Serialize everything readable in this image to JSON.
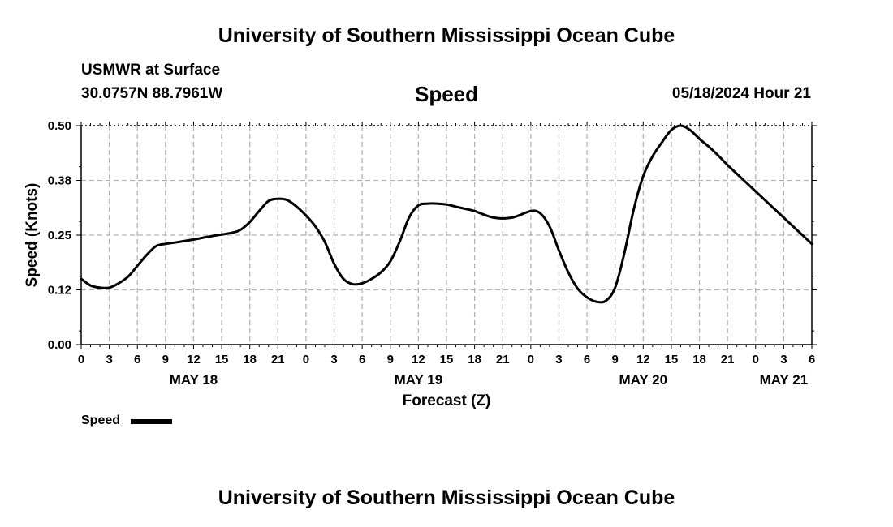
{
  "header": {
    "title": "University of Southern Mississippi Ocean Cube",
    "station": "USMWR at Surface",
    "coords": "30.0757N  88.7961W",
    "parameter": "Speed",
    "datetime": "05/18/2024 Hour 21"
  },
  "footer": {
    "title": "University of Southern Mississippi Ocean Cube"
  },
  "legend": {
    "label": "Speed",
    "color": "#000000"
  },
  "chart_data": {
    "type": "line",
    "xlabel": "Forecast (Z)",
    "ylabel": "Speed (Knots)",
    "ylim": [
      0,
      0.5
    ],
    "y_ticks": [
      "0.00",
      "0.12",
      "0.25",
      "0.38",
      "0.50"
    ],
    "x_range_hours": [
      0,
      78
    ],
    "x_tick_labels": [
      "0",
      "3",
      "6",
      "9",
      "12",
      "15",
      "18",
      "21",
      "0",
      "3",
      "6",
      "9",
      "12",
      "15",
      "18",
      "21",
      "0",
      "3",
      "6",
      "9",
      "12",
      "15",
      "18",
      "21",
      "0",
      "3",
      "6"
    ],
    "date_labels": [
      {
        "text": "MAY 18",
        "hour": 12
      },
      {
        "text": "MAY 19",
        "hour": 36
      },
      {
        "text": "MAY 20",
        "hour": 60
      },
      {
        "text": "MAY 21",
        "hour": 75
      }
    ],
    "grid": true,
    "series": [
      {
        "name": "Speed",
        "color": "#000000",
        "x_hours": [
          0,
          1,
          2,
          3,
          4,
          5,
          6,
          7,
          8,
          9,
          10,
          12,
          14,
          16,
          17,
          18,
          19,
          20,
          21,
          22,
          23,
          24,
          25,
          26,
          27,
          28,
          29,
          30,
          31,
          32,
          33,
          34,
          35,
          36,
          37,
          38,
          39,
          40,
          41,
          42,
          44,
          46,
          48,
          49,
          50,
          51,
          52,
          53,
          54,
          55,
          56,
          57,
          58,
          59,
          60,
          61,
          62,
          63,
          64,
          65,
          66,
          67,
          68,
          69,
          70,
          71,
          72,
          73,
          74,
          75,
          76,
          77,
          78
        ],
        "values": [
          0.15,
          0.135,
          0.13,
          0.13,
          0.14,
          0.155,
          0.18,
          0.205,
          0.225,
          0.23,
          0.233,
          0.24,
          0.248,
          0.255,
          0.262,
          0.28,
          0.305,
          0.328,
          0.333,
          0.33,
          0.315,
          0.295,
          0.27,
          0.235,
          0.185,
          0.15,
          0.138,
          0.14,
          0.15,
          0.165,
          0.19,
          0.235,
          0.29,
          0.318,
          0.322,
          0.322,
          0.32,
          0.315,
          0.31,
          0.305,
          0.29,
          0.29,
          0.305,
          0.3,
          0.27,
          0.215,
          0.165,
          0.128,
          0.108,
          0.098,
          0.1,
          0.13,
          0.21,
          0.31,
          0.385,
          0.43,
          0.462,
          0.49,
          0.5,
          0.49,
          0.47,
          0.452,
          0.432,
          0.41,
          0.39,
          0.37,
          0.35,
          0.33,
          0.31,
          0.29,
          0.27,
          0.25,
          0.23
        ]
      }
    ]
  }
}
